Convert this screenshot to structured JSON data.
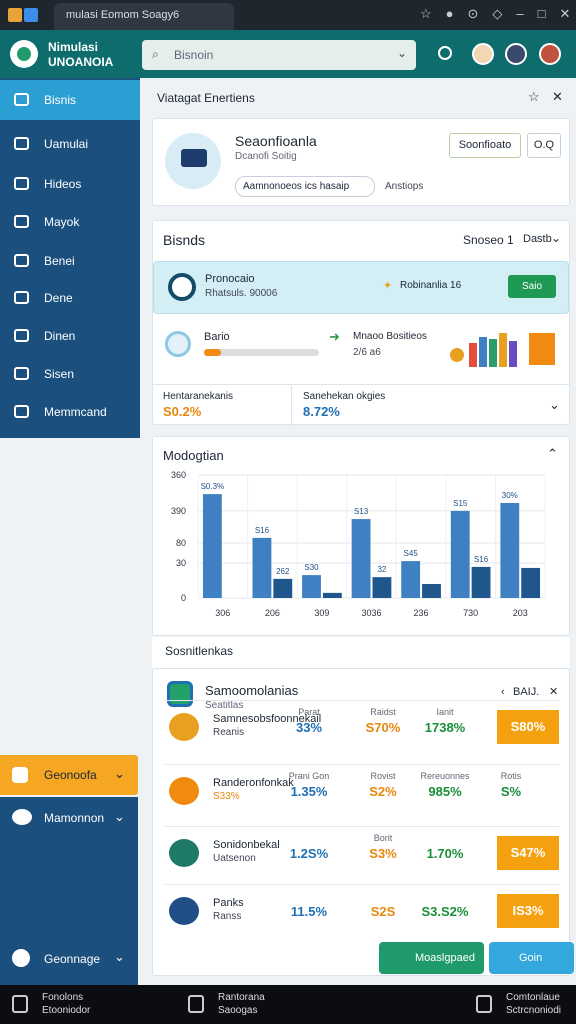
{
  "browser": {
    "tab": "mulasi Eomom Soagy6"
  },
  "header": {
    "logo_line1": "Nimulasi",
    "logo_line2": "UNOANOIA",
    "search": "Bisnoin"
  },
  "sidebar": {
    "items": [
      "Bisnis",
      "Uamulai",
      "Hideos",
      "Mayok",
      "Benei",
      "Dene",
      "Dinen",
      "Sisen",
      "Memmcand"
    ],
    "bottom": [
      "Geonoofa",
      "Mamonnon",
      "Geonnage"
    ]
  },
  "page": {
    "title": "Viatagat Enertiens"
  },
  "profile": {
    "name": "Seaonfioanla",
    "subtitle": "Dcanofi Soitig",
    "button": "Soonfioato",
    "extra": "O.Q",
    "field": "Aamnonoeos ics hasaip",
    "field_note": "Anstiops"
  },
  "business": {
    "title": "Bisnds",
    "control": "Snoseo 1",
    "control2": "Dastb",
    "banner_title": "Pronocaio",
    "banner_sub": "Rhatsuls. 90006",
    "banner_note": "Robinanlia 16",
    "banner_button": "Saio",
    "progress_label": "Bario",
    "progress": 15,
    "arrow_label": "Mnaoo Bositieos",
    "arrow_value": "2/6 a6",
    "stat1_label": "Hentaranekanis",
    "stat1_value": "S0.2%",
    "stat2_label": "Sanehekan okgies",
    "stat2_value": "8.72%"
  },
  "chart": {
    "type": "bar",
    "title": "Modogtian",
    "categories": [
      "306",
      "206",
      "309",
      "3036",
      "236",
      "730",
      "203"
    ],
    "series": [
      {
        "color": "#3f80c2",
        "values": [
          304,
          176,
          67,
          231,
          108,
          255,
          278
        ]
      },
      {
        "color": "#1f568c",
        "values": [
          null,
          56,
          15,
          61,
          41,
          91,
          88
        ]
      }
    ],
    "ylim": [
      0,
      360
    ],
    "yticks": [
      0,
      {
        "value": 102,
        "label": "30"
      },
      {
        "value": 161,
        "label": "80"
      },
      {
        "value": 255,
        "label": "390"
      },
      360
    ],
    "annotations": [
      "S0.3%",
      "S16",
      "262",
      "S30",
      "S13",
      "32",
      "S45",
      "S15",
      "S16",
      "30%"
    ]
  },
  "section": "Sosnitlenkas",
  "table": {
    "title": "Samoomolanias",
    "subtitle": "Seatitlas",
    "control": "BAIJ.",
    "rows": [
      {
        "name": "Samnesobsfoonnekail",
        "sub": "Reanis",
        "cells": [
          {
            "head": "Parat",
            "value": "33%"
          },
          {
            "head": "Raidst",
            "value": "S70%"
          },
          {
            "head": "Ianit",
            "value": "1738%"
          }
        ],
        "badge": "S80%"
      },
      {
        "name": "Randeronfonkak",
        "sub": "S33%",
        "cells": [
          {
            "head": "Prani Gon",
            "value": "1.35%"
          },
          {
            "head": "Rovist",
            "value": "S2%"
          },
          {
            "head": "Rereuonnes",
            "value": "985%"
          },
          {
            "head": "Rotis",
            "value": "S%"
          }
        ]
      },
      {
        "name": "Sonidonbekal",
        "sub": "Uatsenon",
        "cells": [
          {
            "value": "1.2S%"
          },
          {
            "head": "Borit",
            "value": "S3%"
          },
          {
            "value": "1.70%"
          }
        ],
        "badge": "S47%"
      },
      {
        "name": "Panks",
        "sub": "Ranss",
        "cells": [
          {
            "value": "11.5%"
          },
          {
            "value": "S2S"
          },
          {
            "value": "S3.S2%"
          }
        ],
        "badge": "IS3%"
      }
    ]
  },
  "buttons": [
    "Moaslgpaed",
    "Goin"
  ],
  "footer": [
    [
      "Fonolons",
      "Etooniodor"
    ],
    [
      "Rantorana",
      "Saoogas"
    ],
    [
      "Comtonlaue",
      "Sctrcnoniodi"
    ]
  ]
}
